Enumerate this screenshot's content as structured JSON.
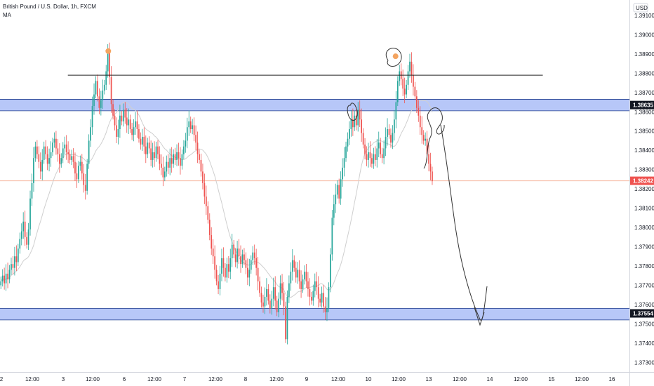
{
  "legend": {
    "symbol_line": "British Pound / U.S. Dollar, 1h, FXCM",
    "indicator": "MA"
  },
  "currency_label": "USD",
  "colors": {
    "up": "#26a69a",
    "down": "#ef5350",
    "zone": "#9fb4f5",
    "zone_line": "#1e3a8a",
    "ma": "#cfcfcf",
    "drawing": "#333333",
    "current_price_line": "#f6b7a1",
    "highlight_dot": "#f4a460"
  },
  "chart_data": {
    "type": "candlestick",
    "symbol": "GBPUSD",
    "timeframe": "1h",
    "y_ticks": [
      "1.39100",
      "1.39000",
      "1.38900",
      "1.38800",
      "1.38700",
      "1.38600",
      "1.38500",
      "1.38400",
      "1.38300",
      "1.38200",
      "1.38100",
      "1.38000",
      "1.37900",
      "1.37800",
      "1.37700",
      "1.37600",
      "1.37500",
      "1.37400",
      "1.37300"
    ],
    "x_ticks": [
      "2",
      "12:00",
      "3",
      "12:00",
      "6",
      "12:00",
      "7",
      "12:00",
      "8",
      "12:00",
      "9",
      "12:00",
      "10",
      "12:00",
      "13",
      "12:00",
      "14",
      "12:00",
      "15",
      "12:00",
      "16"
    ],
    "x_range_hours": [
      0,
      436
    ],
    "ylim": [
      1.3725,
      1.3918
    ],
    "price_labels": [
      {
        "value": 1.38635,
        "text": "1.38635",
        "kind": "zone"
      },
      {
        "value": 1.38242,
        "text": "1.38242",
        "kind": "current"
      },
      {
        "value": 1.37554,
        "text": "1.37554",
        "kind": "zone"
      }
    ],
    "zones": [
      {
        "from": 1.38605,
        "to": 1.38665
      },
      {
        "from": 1.3752,
        "to": 1.3758
      }
    ],
    "resistance_line": {
      "y": 1.3879,
      "x_from": 47,
      "x_to": 376
    },
    "highlights": [
      {
        "x": 75,
        "y": 1.38915
      },
      {
        "x": 274,
        "y": 1.38888
      }
    ],
    "candle_closes": [
      1.3772,
      1.3775,
      1.3771,
      1.3776,
      1.3773,
      1.3778,
      1.3781,
      1.3779,
      1.3785,
      1.3782,
      1.3789,
      1.3794,
      1.3798,
      1.3803,
      1.3795,
      1.3791,
      1.3799,
      1.3815,
      1.3823,
      1.3836,
      1.3842,
      1.3838,
      1.3834,
      1.3829,
      1.3835,
      1.3842,
      1.3838,
      1.3833,
      1.3836,
      1.3839,
      1.3844,
      1.3846,
      1.3841,
      1.3838,
      1.3833,
      1.3836,
      1.3841,
      1.3843,
      1.3839,
      1.3838,
      1.3835,
      1.3837,
      1.3834,
      1.3828,
      1.3825,
      1.3832,
      1.3834,
      1.3828,
      1.3822,
      1.3819,
      1.3833,
      1.3845,
      1.3852,
      1.3863,
      1.3869,
      1.3876,
      1.3868,
      1.3862,
      1.3866,
      1.3871,
      1.3874,
      1.3881,
      1.3891,
      1.3878,
      1.3864,
      1.3858,
      1.3853,
      1.3847,
      1.3851,
      1.3858,
      1.3855,
      1.3861,
      1.3857,
      1.3853,
      1.3856,
      1.3851,
      1.3848,
      1.3852,
      1.3855,
      1.3851,
      1.3846,
      1.3843,
      1.3847,
      1.3842,
      1.3838,
      1.3844,
      1.3841,
      1.3835,
      1.3839,
      1.3836,
      1.3842,
      1.3838,
      1.3833,
      1.3831,
      1.3826,
      1.3829,
      1.3834,
      1.3831,
      1.3836,
      1.3833,
      1.3838,
      1.3835,
      1.3839,
      1.3836,
      1.3832,
      1.3838,
      1.3842,
      1.3845,
      1.3852,
      1.3855,
      1.3851,
      1.3853,
      1.3848,
      1.3844,
      1.3838,
      1.3835,
      1.3829,
      1.3823,
      1.3816,
      1.3811,
      1.3804,
      1.3796,
      1.3789,
      1.3785,
      1.3778,
      1.3772,
      1.3768,
      1.3776,
      1.3784,
      1.3779,
      1.3774,
      1.3781,
      1.3777,
      1.3784,
      1.3791,
      1.3786,
      1.3782,
      1.3789,
      1.3785,
      1.3781,
      1.3786,
      1.3783,
      1.3779,
      1.3774,
      1.3778,
      1.3783,
      1.3787,
      1.3784,
      1.3779,
      1.3772,
      1.3766,
      1.3761,
      1.3759,
      1.3764,
      1.3768,
      1.3762,
      1.3758,
      1.3763,
      1.3769,
      1.3762,
      1.3756,
      1.3763,
      1.3771,
      1.3766,
      1.3759,
      1.3742,
      1.3764,
      1.3771,
      1.3777,
      1.3783,
      1.3779,
      1.3774,
      1.3778,
      1.3772,
      1.3768,
      1.3773,
      1.3777,
      1.3772,
      1.3768,
      1.3764,
      1.3762,
      1.3767,
      1.3772,
      1.3769,
      1.3763,
      1.3761,
      1.3766,
      1.3759,
      1.3756,
      1.3758,
      1.3769,
      1.3786,
      1.3805,
      1.3812,
      1.3817,
      1.3822,
      1.3815,
      1.3825,
      1.3831,
      1.3836,
      1.3842,
      1.3846,
      1.3851,
      1.3856,
      1.3852,
      1.3858,
      1.3853,
      1.3861,
      1.3856,
      1.3849,
      1.3843,
      1.3838,
      1.3835,
      1.3839,
      1.3836,
      1.3833,
      1.3838,
      1.3835,
      1.3841,
      1.3844,
      1.3838,
      1.3836,
      1.3841,
      1.3847,
      1.3851,
      1.3848,
      1.3844,
      1.3849,
      1.3856,
      1.3865,
      1.3876,
      1.3881,
      1.3877,
      1.3872,
      1.3869,
      1.3874,
      1.3881,
      1.3886,
      1.3879,
      1.3873,
      1.3868,
      1.3862,
      1.3858,
      1.3852,
      1.3848,
      1.3845,
      1.3846,
      1.3838,
      1.3833,
      1.3829,
      1.3824
    ]
  }
}
